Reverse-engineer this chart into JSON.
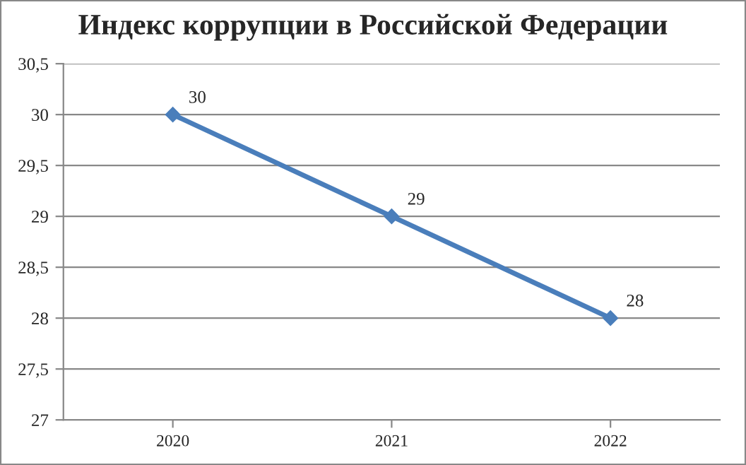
{
  "chart_data": {
    "type": "line",
    "title": "Индекс коррупции в Российской Федерации",
    "categories": [
      "2020",
      "2021",
      "2022"
    ],
    "series": [
      {
        "color": "#4a7ebb",
        "values": [
          30,
          29,
          28
        ]
      }
    ],
    "ylim": [
      27,
      30.5
    ],
    "yticks": [
      27,
      {
        "value": 27.5,
        "label": "27,5"
      },
      28,
      {
        "value": 28.5,
        "label": "28,5"
      },
      29,
      {
        "value": 29.5,
        "label": "29,5"
      },
      30,
      {
        "value": 30.5,
        "label": "30,5"
      }
    ],
    "grid": "y",
    "marker": "diamond",
    "line_style": "solid",
    "data_labels": true,
    "legend": false
  }
}
